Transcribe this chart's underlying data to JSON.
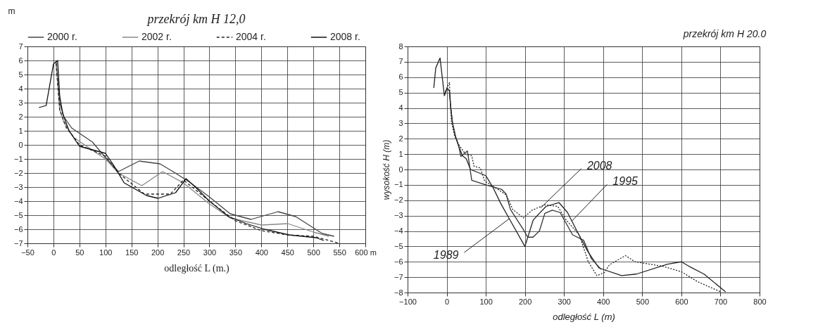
{
  "chart_data": [
    {
      "type": "line",
      "title": "przekrój km H 12,0",
      "xlabel": "odległość L (m.)",
      "ylabel": "m",
      "xlim": [
        -50,
        600
      ],
      "ylim": [
        -7,
        7
      ],
      "xticks": [
        -50,
        0,
        50,
        100,
        150,
        200,
        250,
        300,
        350,
        400,
        450,
        500,
        550,
        {
          "value": 600,
          "label": "600 m"
        }
      ],
      "yticks": [
        -7,
        -6,
        -5,
        -4,
        -3,
        -2,
        -1,
        0,
        1,
        2,
        3,
        4,
        5,
        6,
        7
      ],
      "grid": true,
      "legend": "top",
      "series": [
        {
          "name": "2000 r.",
          "color": "#444444",
          "line_style": "solid",
          "x": [
            5,
            12,
            20,
            35,
            75,
            100,
            125,
            165,
            205,
            230,
            260,
            300,
            340,
            380,
            432,
            466,
            517,
            540
          ],
          "values": [
            6.0,
            3.0,
            2.0,
            1.2,
            0.2,
            -0.9,
            -1.9,
            -1.15,
            -1.35,
            -1.9,
            -2.6,
            -3.7,
            -4.9,
            -5.3,
            -4.75,
            -5.1,
            -6.3,
            -6.5
          ]
        },
        {
          "name": "2002 r.",
          "color": "#888888",
          "line_style": "solid",
          "x": [
            5,
            12,
            20,
            40,
            100,
            125,
            170,
            210,
            250,
            300,
            340,
            400,
            451,
            500,
            530
          ],
          "values": [
            5.9,
            2.5,
            1.6,
            0.5,
            -1.0,
            -2.0,
            -2.9,
            -1.9,
            -2.7,
            -4.2,
            -5.2,
            -5.7,
            -5.6,
            -6.2,
            -6.5
          ]
        },
        {
          "name": "2004 r.",
          "color": "#222222",
          "line_style": "dashed",
          "x": [
            5,
            12,
            25,
            40,
            50,
            100,
            125,
            175,
            225,
            250,
            300,
            350,
            400,
            450,
            500,
            550
          ],
          "values": [
            5.8,
            2.5,
            1.2,
            0.5,
            0,
            -0.8,
            -2.0,
            -3.5,
            -3.5,
            -2.5,
            -4.0,
            -5.4,
            -6.1,
            -6.4,
            -6.5,
            -7.0
          ]
        },
        {
          "name": "2008 r.",
          "color": "#111111",
          "line_style": "solid",
          "x": [
            -28,
            -14,
            0,
            8,
            12,
            18,
            30,
            50,
            100,
            115,
            136,
            179,
            201,
            235,
            255,
            273,
            300,
            337,
            371,
            406,
            453,
            505,
            520
          ],
          "values": [
            2.65,
            2.8,
            5.75,
            6.0,
            3.5,
            2.2,
            1.0,
            -0.1,
            -0.6,
            -1.4,
            -2.7,
            -3.6,
            -3.8,
            -3.4,
            -2.4,
            -3.0,
            -4.0,
            -5.1,
            -5.6,
            -6.0,
            -6.4,
            -6.6,
            -6.8
          ]
        }
      ]
    },
    {
      "type": "line",
      "title": "przekrój km H 20.0",
      "xlabel": "odległość  L    (m)",
      "ylabel": "wysokość H   (m)",
      "xlim": [
        -100,
        800
      ],
      "ylim": [
        -8,
        8
      ],
      "xticks": [
        -100,
        0,
        100,
        200,
        300,
        400,
        500,
        600,
        700,
        800
      ],
      "yticks": [
        -8,
        -7,
        -6,
        -5,
        -4,
        -3,
        -2,
        -1,
        0,
        1,
        2,
        3,
        4,
        5,
        6,
        7,
        8
      ],
      "grid": true,
      "annotations": [
        {
          "text": "1989",
          "x": 160,
          "y": -3.2
        },
        {
          "text": "2008",
          "x": 240,
          "y": -2.5
        },
        {
          "text": "1995",
          "x": 320,
          "y": -3.35
        }
      ],
      "series": [
        {
          "color": "#222222",
          "line_style": "solid",
          "x": [
            -33,
            -28,
            -17,
            -6,
            1,
            7,
            10,
            15,
            23,
            31,
            40,
            50,
            61,
            100,
            119,
            138,
            160,
            200,
            221,
            237,
            254,
            287,
            309,
            333,
            360,
            389,
            447,
            485,
            565,
            600,
            620,
            658,
            713
          ],
          "values": [
            5.3,
            6.6,
            7.25,
            4.8,
            5.3,
            5.1,
            4.1,
            3.0,
            2.1,
            1.5,
            0.9,
            0.7,
            0,
            -0.4,
            -1.2,
            -2.2,
            -3.2,
            -5.0,
            -3.3,
            -2.85,
            -2.4,
            -2.15,
            -2.8,
            -4.0,
            -5.3,
            -6.4,
            -6.9,
            -6.8,
            -6.15,
            -6.0,
            -6.3,
            -6.8,
            -7.95
          ]
        },
        {
          "color": "#333333",
          "line_style": "solid",
          "x": [
            -6,
            1,
            7,
            10,
            15,
            23,
            31,
            36,
            53,
            64,
            100,
            141,
            152,
            163,
            196,
            207,
            221,
            237,
            251,
            270,
            290,
            322,
            350,
            370,
            395
          ],
          "values": [
            4.8,
            5.3,
            5.1,
            4.1,
            3.0,
            2.1,
            1.5,
            0.85,
            1.2,
            -0.7,
            -1.0,
            -1.3,
            -1.6,
            -2.6,
            -3.9,
            -4.4,
            -4.4,
            -4.0,
            -2.85,
            -2.65,
            -2.8,
            -4.25,
            -4.6,
            -5.8,
            -6.5
          ]
        },
        {
          "color": "#222222",
          "line_style": "dotted",
          "x": [
            -6,
            7,
            12,
            20,
            31,
            48,
            64,
            70,
            86,
            97,
            119,
            152,
            169,
            196,
            218,
            251,
            284,
            306,
            339,
            362,
            384,
            403,
            416,
            457,
            482,
            554,
            600,
            642,
            700
          ],
          "values": [
            4.9,
            5.65,
            3.1,
            2.2,
            1.6,
            1.0,
            0.9,
            0.2,
            0.1,
            -0.75,
            -1.1,
            -1.65,
            -2.6,
            -3.15,
            -2.65,
            -2.3,
            -2.4,
            -3.3,
            -4.25,
            -6.0,
            -6.9,
            -6.7,
            -6.2,
            -5.6,
            -6.0,
            -6.3,
            -6.65,
            -7.3,
            -7.95
          ]
        }
      ]
    }
  ]
}
